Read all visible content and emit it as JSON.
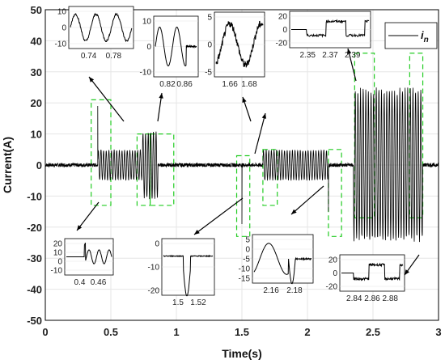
{
  "chart_data": {
    "type": "line",
    "title": "",
    "xlabel": "Time(s)",
    "ylabel": "Current(A)",
    "xlim": [
      0,
      3
    ],
    "ylim": [
      -50,
      50
    ],
    "xticks": [
      0,
      0.5,
      1,
      1.5,
      2,
      2.5,
      3
    ],
    "yticks": [
      -50,
      -40,
      -30,
      -20,
      -10,
      0,
      10,
      20,
      30,
      40,
      50
    ],
    "grid": true,
    "legend": {
      "label": "i",
      "subscript": "n",
      "placement": "top-right"
    },
    "highlight_color": "#22cc22",
    "line_color": "#000000",
    "series": [
      {
        "segments": [
          {
            "x_range": [
              0.0,
              0.4
            ],
            "amplitude": 0.6
          },
          {
            "x_range": [
              0.4,
              0.74
            ],
            "amplitude": 5,
            "note_spike_at": 0.4,
            "spike_peak": 19
          },
          {
            "x_range": [
              0.74,
              0.86
            ],
            "amplitude": 11
          },
          {
            "x_range": [
              0.86,
              1.5
            ],
            "amplitude": 0.6
          },
          {
            "x_range": [
              1.5,
              1.51
            ],
            "spike_peak": -19
          },
          {
            "x_range": [
              1.51,
              1.66
            ],
            "amplitude": 0.6
          },
          {
            "x_range": [
              1.66,
              2.16
            ],
            "amplitude": 5
          },
          {
            "x_range": [
              2.16,
              2.18
            ],
            "spike_peak": -15
          },
          {
            "x_range": [
              2.18,
              2.35
            ],
            "amplitude": 0.6
          },
          {
            "x_range": [
              2.35,
              2.88
            ],
            "amplitude": 25
          },
          {
            "x_range": [
              2.88,
              3.0
            ],
            "amplitude": 0.6
          }
        ]
      }
    ],
    "highlight_boxes": [
      {
        "x_range": [
          0.35,
          0.5
        ],
        "y_range": [
          -13,
          21
        ]
      },
      {
        "x_range": [
          0.7,
          0.8
        ],
        "y_range": [
          -13,
          10
        ]
      },
      {
        "x_range": [
          0.8,
          0.98
        ],
        "y_range": [
          -13,
          10
        ]
      },
      {
        "x_range": [
          1.46,
          1.56
        ],
        "y_range": [
          -23,
          3
        ]
      },
      {
        "x_range": [
          1.66,
          1.77
        ],
        "y_range": [
          -13,
          5
        ]
      },
      {
        "x_range": [
          2.16,
          2.26
        ],
        "y_range": [
          -23,
          5
        ]
      },
      {
        "x_range": [
          2.36,
          2.51
        ],
        "y_range": [
          -17,
          36
        ]
      },
      {
        "x_range": [
          2.78,
          2.88
        ],
        "y_range": [
          -17,
          36
        ]
      }
    ],
    "insets": [
      {
        "id": "a",
        "xticks": [
          "0.74",
          "0.78"
        ],
        "yticks": [
          "10",
          "0",
          "-10"
        ]
      },
      {
        "id": "b",
        "xticks": [
          "0.82",
          "0.86"
        ],
        "yticks": [
          "10",
          "0",
          "-10"
        ]
      },
      {
        "id": "c",
        "xticks": [
          "1.66",
          "1.68"
        ],
        "yticks": [
          "5",
          "0",
          "-5"
        ]
      },
      {
        "id": "d",
        "xticks": [
          "2.35",
          "2.37",
          "2.39"
        ],
        "yticks": [
          "20",
          "0",
          "-20"
        ]
      },
      {
        "id": "e",
        "xticks": [
          "0.4",
          "0.46"
        ],
        "yticks": [
          "20",
          "10",
          "0",
          "-10"
        ]
      },
      {
        "id": "f",
        "xticks": [
          "1.5",
          "1.52"
        ],
        "yticks": [
          "0",
          "-10",
          "-20"
        ]
      },
      {
        "id": "g",
        "xticks": [
          "2.16",
          "2.18"
        ],
        "yticks": [
          "5",
          "0",
          "-5",
          "-10",
          "-15"
        ]
      },
      {
        "id": "h",
        "xticks": [
          "2.84",
          "2.86",
          "2.88"
        ],
        "yticks": [
          "20",
          "0",
          "-20"
        ]
      }
    ]
  }
}
